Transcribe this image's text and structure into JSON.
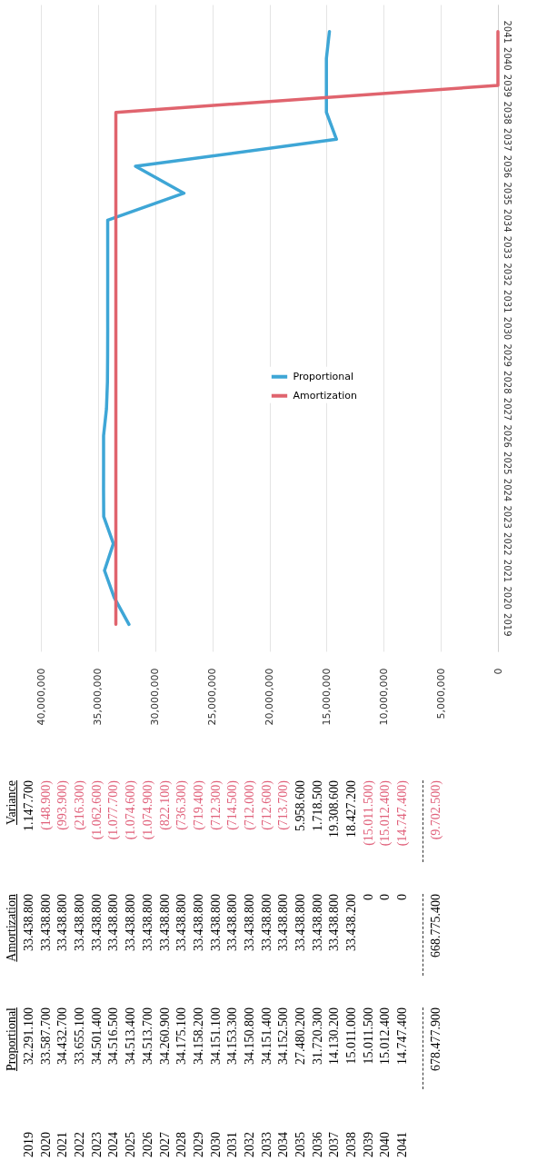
{
  "chart_data": {
    "type": "line",
    "orientation": "horizontal",
    "categories": [
      "2041",
      "2040",
      "2039",
      "2038",
      "2037",
      "2036",
      "2035",
      "2034",
      "2033",
      "2032",
      "2031",
      "2030",
      "2029",
      "2028",
      "2027",
      "2026",
      "2025",
      "2024",
      "2023",
      "2022",
      "2021",
      "2020",
      "2019"
    ],
    "series": [
      {
        "name": "Proportional",
        "color": "#3ea6d6",
        "values": [
          14747400,
          15012400,
          15011500,
          15011000,
          14130200,
          31720300,
          27480200,
          34152500,
          34151400,
          34150800,
          34153300,
          34151100,
          34158200,
          34175100,
          34260900,
          34513700,
          34513400,
          34516500,
          34501400,
          33655100,
          34432700,
          33587700,
          32291100
        ]
      },
      {
        "name": "Amortization",
        "color": "#e0646e",
        "values": [
          0,
          0,
          0,
          33438200,
          33438800,
          33438800,
          33438800,
          33438800,
          33438800,
          33438800,
          33438800,
          33438800,
          33438800,
          33438800,
          33438800,
          33438800,
          33438800,
          33438800,
          33438800,
          33438800,
          33438800,
          33438800,
          33438800
        ]
      }
    ],
    "annotations": [
      "Variance",
      "32.291.100",
      "33.587.700",
      "34.432.700",
      "33.655.100",
      "34.501.400",
      "34.516.500",
      "34.513.400",
      "34.513.700",
      "34.260.900",
      "34.175.100",
      "34.158.200",
      "34.151.100",
      "34.153.300",
      "34.150.800",
      "34.151.400",
      "34.152.500",
      "27.480.200",
      "31.720.300",
      "14.130.200",
      "15.011.000",
      "15.011.500",
      "15.012.400",
      "14.747.400",
      "33.438.800",
      "33.438.800",
      "33.438.800",
      "33.438.800",
      "33.438.800",
      "33.438.800",
      "33.438.800",
      "33.438.800",
      "33.438.800",
      "33.438.800",
      "33.438.800",
      "33.438.800",
      "33.438.800",
      "33.438.800",
      "33.438.800",
      "33.438.800",
      "33.438.800",
      "33.438.800",
      "33.438.800",
      "33.438.200",
      "0",
      "0",
      "0",
      "1.147.700",
      "(148.900)",
      "(993.900)",
      "(216.300)",
      "(1.062.600)",
      "(1.077.700)",
      "(1.074.600)",
      "(1.074.900)",
      "(822.100)",
      "(736.300)",
      "(719.400)",
      "(712.300)",
      "(714.500)",
      "(712.000)",
      "(712.600)",
      "(713.700)",
      "5.958.600",
      "1.718.500",
      "19.308.600",
      "18.427.200",
      "(15.011.500)",
      "(15.012.400)",
      "(14.747.400)",
      "678.477.900",
      "668.775.400",
      "(9.702.500)"
    ],
    "xlim": [
      40000000,
      0
    ],
    "xticks": [
      0,
      {
        "value": 5000000,
        "label": "5,000,000"
      },
      {
        "value": 10000000,
        "label": "10,000,000"
      },
      {
        "value": 15000000,
        "label": "15,000,000"
      },
      {
        "value": 20000000,
        "label": "20,000,000"
      },
      {
        "value": 25000000,
        "label": "25,000,000"
      },
      {
        "value": 30000000,
        "label": "30,000,000"
      },
      {
        "value": 35000000,
        "label": "35,000,000"
      },
      {
        "value": 40000000,
        "label": "40,000,000"
      }
    ],
    "grid": "x",
    "legend": "center"
  }
}
